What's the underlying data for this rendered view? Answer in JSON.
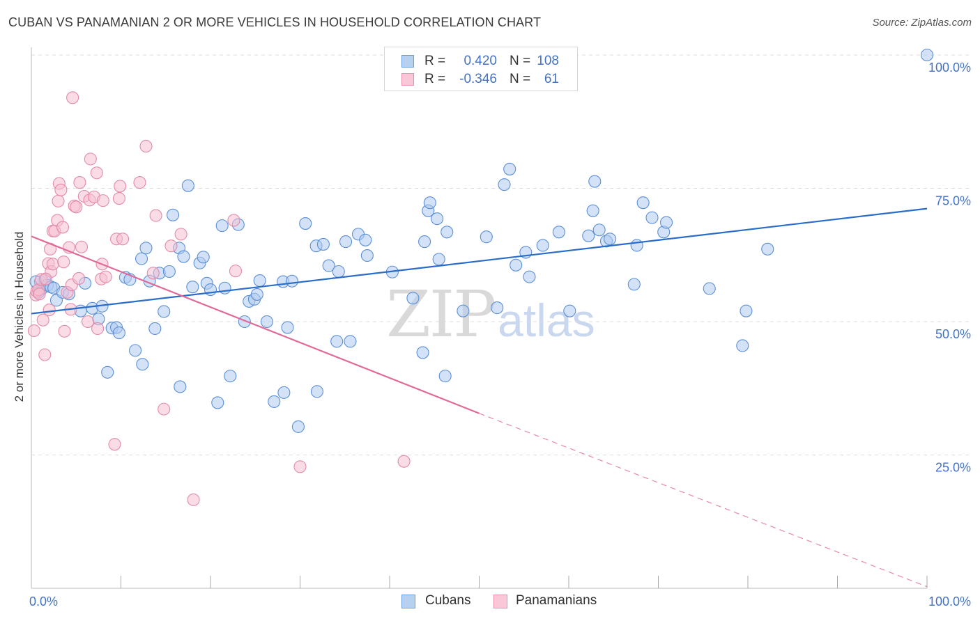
{
  "title": "CUBAN VS PANAMANIAN 2 OR MORE VEHICLES IN HOUSEHOLD CORRELATION CHART",
  "source": "Source: ZipAtlas.com",
  "watermark": {
    "zip": "ZIP",
    "atlas": "atlas"
  },
  "legend": {
    "r_label": "R =",
    "n_label": "N =",
    "rows": [
      {
        "r": "0.420",
        "n": "108",
        "fill": "#b8d0f0",
        "stroke": "#6b9bd9"
      },
      {
        "r": "-0.346",
        "n": "61",
        "fill": "#f8c8d8",
        "stroke": "#e890ad"
      }
    ]
  },
  "colors": {
    "cubans_fill": "#aecbf0",
    "cubans_stroke": "#5b8fd6",
    "cubans_line": "#2a6cc9",
    "panamanians_fill": "#f6bfd1",
    "panamanians_stroke": "#e38aa8",
    "panamanians_line": "#e06a98",
    "accent_text": "#4472c4",
    "grid": "#dddddd"
  },
  "chart_data": {
    "type": "scatter",
    "title": "CUBAN VS PANAMANIAN 2 OR MORE VEHICLES IN HOUSEHOLD CORRELATION CHART",
    "xlabel": "",
    "ylabel": "2 or more Vehicles in Household",
    "xlim": [
      0,
      100
    ],
    "ylim": [
      0,
      100
    ],
    "x_tick_labels": [
      "0.0%",
      "100.0%"
    ],
    "y_tick_labels": [
      {
        "value": 25,
        "label": "25.0%"
      },
      {
        "value": 50,
        "label": "50.0%"
      },
      {
        "value": 75,
        "label": "75.0%"
      },
      {
        "value": 100,
        "label": "100.0%"
      }
    ],
    "grid": true,
    "legend_position": "top-center",
    "series": [
      {
        "name": "Cubans",
        "r": 0.42,
        "n": 108,
        "trend": {
          "x": [
            0,
            100
          ],
          "y": [
            51.5,
            71.2
          ],
          "dashed_from": null
        },
        "points": [
          [
            0.8,
            55.5
          ],
          [
            1.0,
            57.5
          ],
          [
            1.2,
            56.2
          ],
          [
            1.5,
            57.8
          ],
          [
            1.8,
            56.8
          ],
          [
            2.2,
            56.5
          ],
          [
            2.5,
            56.3
          ],
          [
            2.8,
            54.0
          ],
          [
            3.5,
            55.5
          ],
          [
            4.2,
            55.2
          ],
          [
            5.5,
            52.0
          ],
          [
            6.0,
            57.2
          ],
          [
            6.8,
            52.5
          ],
          [
            7.5,
            50.5
          ],
          [
            7.9,
            52.9
          ],
          [
            8.5,
            40.5
          ],
          [
            9.0,
            48.8
          ],
          [
            9.5,
            48.9
          ],
          [
            9.8,
            47.9
          ],
          [
            10.5,
            58.3
          ],
          [
            11.0,
            57.9
          ],
          [
            11.6,
            44.6
          ],
          [
            12.3,
            61.8
          ],
          [
            12.4,
            42.0
          ],
          [
            12.8,
            63.8
          ],
          [
            13.2,
            57.6
          ],
          [
            13.8,
            48.7
          ],
          [
            14.3,
            59.1
          ],
          [
            14.8,
            51.9
          ],
          [
            15.4,
            59.4
          ],
          [
            15.8,
            70.0
          ],
          [
            16.5,
            63.8
          ],
          [
            16.6,
            37.8
          ],
          [
            17.0,
            62.2
          ],
          [
            17.5,
            75.5
          ],
          [
            18.0,
            56.5
          ],
          [
            18.8,
            61.0
          ],
          [
            19.2,
            62.1
          ],
          [
            19.6,
            57.2
          ],
          [
            20.0,
            56.0
          ],
          [
            20.8,
            34.8
          ],
          [
            21.3,
            68.0
          ],
          [
            21.6,
            56.3
          ],
          [
            22.2,
            39.8
          ],
          [
            23.1,
            68.2
          ],
          [
            23.8,
            50.0
          ],
          [
            24.3,
            53.8
          ],
          [
            24.9,
            54.2
          ],
          [
            25.2,
            55.1
          ],
          [
            25.5,
            57.7
          ],
          [
            26.3,
            50.0
          ],
          [
            27.1,
            35.0
          ],
          [
            28.2,
            36.7
          ],
          [
            28.1,
            57.5
          ],
          [
            28.6,
            48.9
          ],
          [
            29.1,
            57.6
          ],
          [
            29.8,
            30.3
          ],
          [
            30.6,
            68.4
          ],
          [
            31.8,
            64.2
          ],
          [
            31.9,
            36.9
          ],
          [
            32.6,
            64.5
          ],
          [
            33.2,
            60.5
          ],
          [
            34.1,
            46.3
          ],
          [
            34.3,
            59.4
          ],
          [
            35.1,
            65.0
          ],
          [
            35.6,
            46.3
          ],
          [
            36.5,
            66.4
          ],
          [
            37.3,
            65.3
          ],
          [
            37.5,
            62.4
          ],
          [
            40.3,
            59.3
          ],
          [
            42.6,
            54.4
          ],
          [
            43.7,
            44.2
          ],
          [
            43.9,
            65.0
          ],
          [
            44.3,
            70.8
          ],
          [
            44.5,
            72.3
          ],
          [
            45.3,
            69.3
          ],
          [
            45.5,
            61.7
          ],
          [
            46.2,
            39.8
          ],
          [
            46.4,
            66.8
          ],
          [
            48.2,
            52.0
          ],
          [
            50.8,
            65.9
          ],
          [
            52.0,
            52.6
          ],
          [
            52.8,
            75.7
          ],
          [
            53.4,
            78.6
          ],
          [
            54.1,
            60.6
          ],
          [
            55.2,
            63.0
          ],
          [
            55.6,
            58.4
          ],
          [
            57.1,
            64.3
          ],
          [
            58.9,
            66.8
          ],
          [
            60.1,
            52.0
          ],
          [
            62.2,
            66.1
          ],
          [
            62.7,
            70.8
          ],
          [
            62.9,
            76.3
          ],
          [
            63.4,
            67.2
          ],
          [
            64.2,
            65.1
          ],
          [
            64.6,
            65.5
          ],
          [
            67.3,
            57.0
          ],
          [
            67.6,
            64.3
          ],
          [
            68.3,
            72.3
          ],
          [
            69.3,
            69.5
          ],
          [
            70.6,
            66.8
          ],
          [
            70.9,
            68.6
          ],
          [
            75.7,
            56.2
          ],
          [
            79.4,
            45.5
          ],
          [
            79.8,
            52.0
          ],
          [
            82.2,
            63.6
          ],
          [
            100.0,
            100.0
          ],
          [
            0.5,
            57.5
          ]
        ]
      },
      {
        "name": "Panamanians",
        "r": -0.346,
        "n": 61,
        "trend": {
          "x": [
            0,
            50
          ],
          "y": [
            66.0,
            32.8
          ],
          "dashed_from": 50,
          "dashed_to": [
            100,
            0.3
          ]
        },
        "points": [
          [
            0.3,
            48.3
          ],
          [
            0.5,
            55.0
          ],
          [
            0.6,
            55.7
          ],
          [
            0.8,
            56.0
          ],
          [
            1.1,
            57.9
          ],
          [
            1.3,
            50.3
          ],
          [
            1.5,
            43.8
          ],
          [
            1.9,
            60.9
          ],
          [
            2.0,
            52.2
          ],
          [
            2.1,
            63.6
          ],
          [
            2.2,
            59.4
          ],
          [
            2.4,
            60.8
          ],
          [
            2.4,
            67.0
          ],
          [
            2.6,
            67.0
          ],
          [
            2.9,
            69.0
          ],
          [
            3.0,
            72.6
          ],
          [
            3.1,
            75.9
          ],
          [
            3.3,
            74.7
          ],
          [
            3.5,
            67.7
          ],
          [
            3.6,
            61.2
          ],
          [
            3.7,
            48.2
          ],
          [
            4.0,
            55.5
          ],
          [
            4.2,
            63.9
          ],
          [
            4.4,
            52.3
          ],
          [
            4.5,
            56.9
          ],
          [
            4.6,
            92.0
          ],
          [
            4.8,
            71.7
          ],
          [
            5.0,
            71.5
          ],
          [
            5.3,
            58.1
          ],
          [
            5.4,
            76.1
          ],
          [
            5.6,
            64.0
          ],
          [
            5.9,
            73.5
          ],
          [
            6.3,
            50.0
          ],
          [
            6.5,
            72.8
          ],
          [
            6.6,
            80.5
          ],
          [
            7.0,
            73.4
          ],
          [
            7.3,
            77.9
          ],
          [
            7.4,
            48.7
          ],
          [
            7.8,
            58.0
          ],
          [
            7.9,
            60.8
          ],
          [
            8.0,
            72.7
          ],
          [
            8.3,
            58.4
          ],
          [
            9.3,
            27.0
          ],
          [
            9.5,
            65.5
          ],
          [
            9.8,
            73.1
          ],
          [
            9.9,
            75.4
          ],
          [
            10.2,
            65.5
          ],
          [
            12.1,
            76.1
          ],
          [
            12.8,
            82.9
          ],
          [
            13.6,
            59.1
          ],
          [
            13.9,
            69.9
          ],
          [
            14.8,
            33.6
          ],
          [
            15.6,
            64.2
          ],
          [
            16.7,
            66.4
          ],
          [
            18.1,
            16.6
          ],
          [
            22.6,
            69.0
          ],
          [
            22.8,
            59.5
          ],
          [
            30.0,
            22.8
          ],
          [
            41.6,
            23.8
          ],
          [
            0.9,
            55.2
          ],
          [
            1.6,
            58.0
          ]
        ]
      }
    ]
  },
  "bottom_legend": [
    {
      "label": "Cubans",
      "fill": "#b8d0f0",
      "stroke": "#6b9bd9"
    },
    {
      "label": "Panamanians",
      "fill": "#f8c8d8",
      "stroke": "#e890ad"
    }
  ]
}
